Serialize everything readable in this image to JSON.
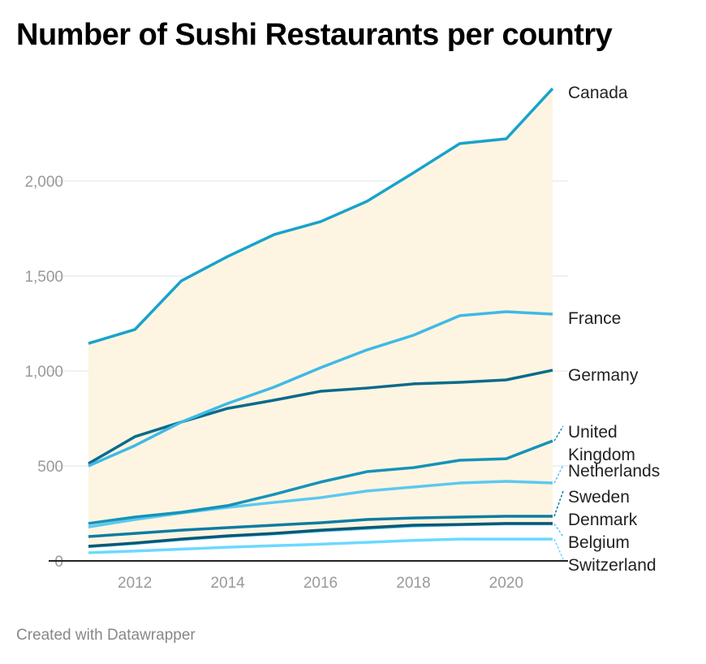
{
  "chart_data": {
    "type": "line",
    "title": "Number of Sushi Restaurants per country",
    "xlabel": "",
    "ylabel": "",
    "x": [
      2011,
      2012,
      2013,
      2014,
      2015,
      2016,
      2017,
      2018,
      2019,
      2020,
      2021
    ],
    "x_ticks": [
      "2012",
      "2014",
      "2016",
      "2018",
      "2020"
    ],
    "y_ticks": [
      "0",
      "500",
      "1,000",
      "1,500",
      "2,000"
    ],
    "ylim": [
      0,
      2500
    ],
    "grid": true,
    "legend": "direct labels at right",
    "area_fill_color": "#fdf5e1",
    "series": [
      {
        "name": "Canada",
        "color": "#18a2cc",
        "values": [
          1145,
          1218,
          1474,
          1603,
          1718,
          1786,
          1893,
          2043,
          2197,
          2222,
          2487
        ]
      },
      {
        "name": "France",
        "color": "#3fb9e6",
        "values": [
          500,
          607,
          731,
          829,
          915,
          1017,
          1111,
          1188,
          1291,
          1312,
          1299
        ]
      },
      {
        "name": "Germany",
        "color": "#0a6a8c",
        "values": [
          512,
          654,
          731,
          803,
          846,
          893,
          910,
          932,
          940,
          953,
          1004
        ]
      },
      {
        "name": "United Kingdom",
        "color": "#1592b9",
        "values": [
          197,
          231,
          256,
          291,
          350,
          415,
          470,
          491,
          530,
          538,
          632
        ]
      },
      {
        "name": "Netherlands",
        "color": "#5cc8f0",
        "values": [
          179,
          218,
          252,
          282,
          308,
          333,
          368,
          389,
          410,
          419,
          410
        ]
      },
      {
        "name": "Sweden",
        "color": "#0c7ca3",
        "values": [
          128,
          145,
          162,
          175,
          188,
          201,
          218,
          226,
          231,
          235,
          235
        ]
      },
      {
        "name": "Denmark",
        "color": "#0b5876",
        "values": [
          77,
          94,
          115,
          132,
          145,
          162,
          175,
          188,
          192,
          197,
          197
        ]
      },
      {
        "name": "Belgium",
        "color": "#52cdf2",
        "values": [
          75,
          92,
          112,
          129,
          142,
          158,
          171,
          184,
          190,
          195,
          195
        ]
      },
      {
        "name": "Switzerland",
        "color": "#6bd9ff",
        "values": [
          43,
          52,
          62,
          72,
          80,
          88,
          98,
          108,
          115,
          115,
          115
        ]
      }
    ]
  },
  "footer": {
    "credit": "Created with Datawrapper"
  }
}
